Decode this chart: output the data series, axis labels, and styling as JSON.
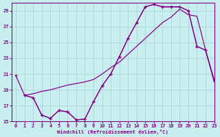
{
  "xlabel": "Windchill (Refroidissement éolien,°C)",
  "bg_color": "#c8eef0",
  "grid_color": "#b0d8dc",
  "line_color": "#880088",
  "xlim": [
    -0.5,
    23
  ],
  "ylim": [
    15,
    30
  ],
  "yticks": [
    15,
    17,
    19,
    21,
    23,
    25,
    27,
    29
  ],
  "xticks": [
    0,
    1,
    2,
    3,
    4,
    5,
    6,
    7,
    8,
    9,
    10,
    11,
    12,
    13,
    14,
    15,
    16,
    17,
    18,
    19,
    20,
    21,
    22,
    23
  ],
  "line1_x": [
    0,
    1,
    2,
    3,
    4,
    5,
    6,
    7,
    8,
    9,
    10,
    11,
    12,
    13,
    14,
    15,
    16,
    17,
    18,
    19,
    20,
    21,
    22,
    23
  ],
  "line1_y": [
    20.8,
    18.3,
    18.0,
    15.8,
    15.4,
    16.4,
    16.2,
    15.2,
    15.3,
    17.5,
    19.5,
    21.0,
    23.2,
    25.5,
    27.5,
    29.5,
    29.8,
    29.5,
    29.5,
    29.5,
    29.0,
    24.5,
    24.0,
    20.2
  ],
  "line2_x": [
    1,
    2,
    3,
    4,
    5,
    6,
    7,
    8,
    9,
    10,
    11,
    12,
    13,
    14,
    15,
    16,
    17,
    18,
    19,
    20,
    21,
    22,
    23
  ],
  "line2_y": [
    18.3,
    18.5,
    18.8,
    19.0,
    19.3,
    19.6,
    19.8,
    20.0,
    20.3,
    21.0,
    21.8,
    22.5,
    23.5,
    24.5,
    25.5,
    26.5,
    27.5,
    28.2,
    29.2,
    28.5,
    28.3,
    24.0,
    20.0
  ],
  "line3_x": [
    1,
    2,
    3,
    4,
    5,
    6,
    7,
    8,
    9,
    10,
    11,
    12,
    13,
    14,
    15,
    16,
    17,
    18,
    19,
    20,
    21,
    22,
    23
  ],
  "line3_y": [
    18.3,
    18.0,
    15.8,
    15.4,
    16.4,
    16.2,
    15.2,
    15.3,
    17.5,
    19.5,
    21.0,
    23.2,
    25.5,
    27.5,
    29.5,
    29.8,
    29.5,
    29.5,
    29.5,
    29.0,
    24.5,
    24.0,
    20.2
  ]
}
